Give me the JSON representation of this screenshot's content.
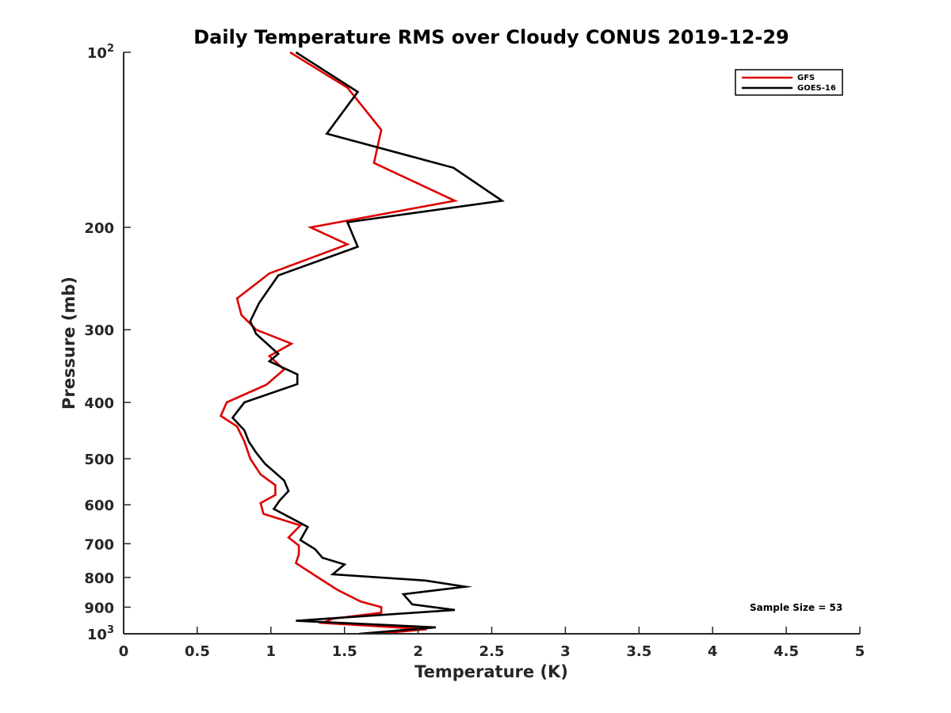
{
  "chart_data": {
    "type": "line",
    "title": "Daily Temperature RMS over Cloudy CONUS 2019-12-29",
    "xlabel": "Temperature (K)",
    "ylabel": "Pressure (mb)",
    "xlim": [
      0,
      5
    ],
    "ylim": [
      100,
      1000
    ],
    "y_scale": "log",
    "y_reversed": true,
    "grid": false,
    "legend_position": "top-right",
    "x_ticks": [
      "0",
      "0.5",
      "1",
      "1.5",
      "2",
      "2.5",
      "3",
      "3.5",
      "4",
      "4.5",
      "5"
    ],
    "y_ticks": [
      {
        "value": 100,
        "base": "10",
        "exp": "2"
      },
      {
        "value": 200,
        "label": "200"
      },
      {
        "value": 300,
        "label": "300"
      },
      {
        "value": 400,
        "label": "400"
      },
      {
        "value": 500,
        "label": "500"
      },
      {
        "value": 600,
        "label": "600"
      },
      {
        "value": 700,
        "label": "700"
      },
      {
        "value": 800,
        "label": "800"
      },
      {
        "value": 900,
        "label": "900"
      },
      {
        "value": 1000,
        "base": "10",
        "exp": "3"
      }
    ],
    "series": [
      {
        "name": "GFS",
        "color": "#dd0000",
        "points": [
          [
            1.13,
            100
          ],
          [
            1.52,
            115
          ],
          [
            1.75,
            136
          ],
          [
            1.7,
            155
          ],
          [
            2.25,
            180
          ],
          [
            1.27,
            200
          ],
          [
            1.52,
            214
          ],
          [
            0.99,
            240
          ],
          [
            0.77,
            265
          ],
          [
            0.8,
            283
          ],
          [
            0.9,
            300
          ],
          [
            1.14,
            317
          ],
          [
            0.99,
            333
          ],
          [
            1.09,
            351
          ],
          [
            0.97,
            373
          ],
          [
            0.7,
            400
          ],
          [
            0.66,
            422
          ],
          [
            0.77,
            440
          ],
          [
            0.82,
            467
          ],
          [
            0.86,
            500
          ],
          [
            0.93,
            532
          ],
          [
            1.03,
            555
          ],
          [
            1.03,
            577
          ],
          [
            0.93,
            596
          ],
          [
            0.95,
            622
          ],
          [
            1.2,
            651
          ],
          [
            1.12,
            683
          ],
          [
            1.19,
            705
          ],
          [
            1.19,
            730
          ],
          [
            1.17,
            756
          ],
          [
            1.32,
            800
          ],
          [
            1.45,
            840
          ],
          [
            1.61,
            880
          ],
          [
            1.75,
            900
          ],
          [
            1.75,
            920
          ],
          [
            1.42,
            942
          ],
          [
            1.35,
            958
          ],
          [
            2.06,
            982
          ],
          [
            1.72,
            1000
          ]
        ]
      },
      {
        "name": "GOES-16",
        "color": "#000000",
        "points": [
          [
            1.17,
            100
          ],
          [
            1.59,
            117
          ],
          [
            1.38,
            138
          ],
          [
            2.24,
            158
          ],
          [
            2.57,
            180
          ],
          [
            1.52,
            196
          ],
          [
            1.59,
            216
          ],
          [
            1.05,
            242
          ],
          [
            0.92,
            270
          ],
          [
            0.86,
            290
          ],
          [
            0.9,
            305
          ],
          [
            1.05,
            330
          ],
          [
            0.99,
            340
          ],
          [
            1.18,
            358
          ],
          [
            1.18,
            372
          ],
          [
            0.82,
            400
          ],
          [
            0.74,
            425
          ],
          [
            0.82,
            447
          ],
          [
            0.85,
            467
          ],
          [
            0.9,
            488
          ],
          [
            0.96,
            510
          ],
          [
            1.09,
            545
          ],
          [
            1.12,
            568
          ],
          [
            1.06,
            590
          ],
          [
            1.02,
            610
          ],
          [
            1.25,
            655
          ],
          [
            1.2,
            690
          ],
          [
            1.3,
            715
          ],
          [
            1.35,
            740
          ],
          [
            1.5,
            760
          ],
          [
            1.42,
            790
          ],
          [
            2.05,
            810
          ],
          [
            2.32,
            830
          ],
          [
            1.9,
            855
          ],
          [
            1.96,
            890
          ],
          [
            2.25,
            910
          ],
          [
            1.17,
            950
          ],
          [
            2.12,
            975
          ],
          [
            1.6,
            1000
          ]
        ]
      }
    ],
    "legend": [
      {
        "label": "GFS",
        "color": "#dd0000"
      },
      {
        "label": "GOES-16",
        "color": "#000000"
      }
    ],
    "annotations": [
      {
        "text": "Sample Size = 53"
      }
    ]
  }
}
